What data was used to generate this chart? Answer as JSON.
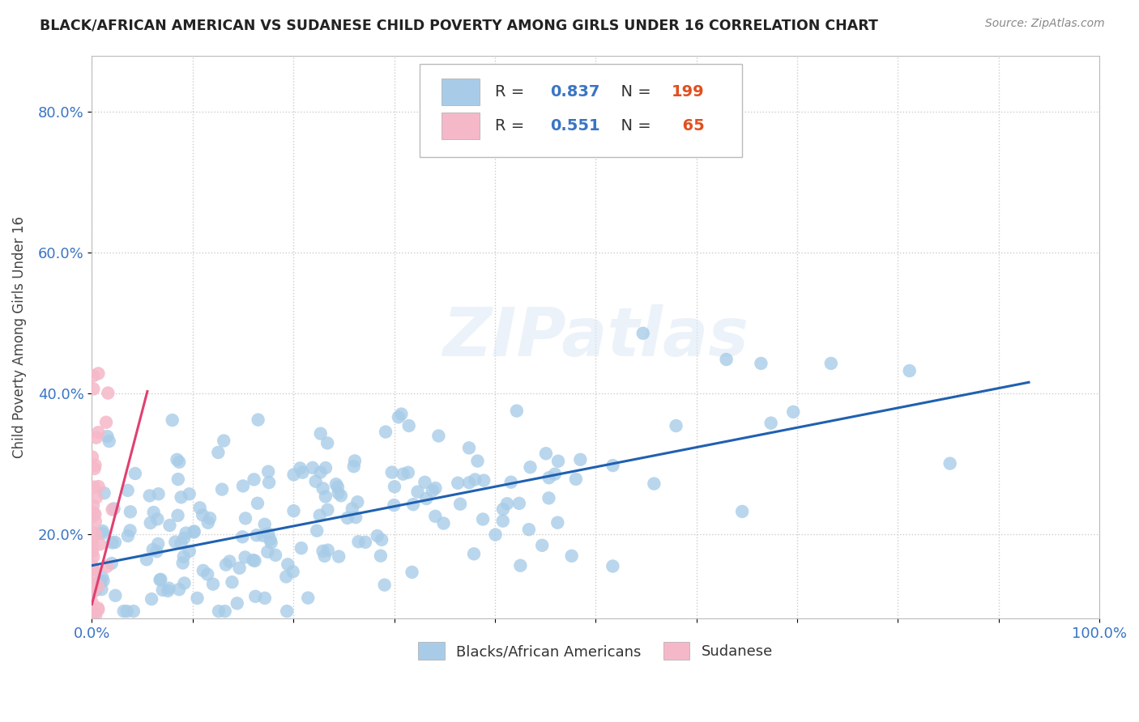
{
  "title": "BLACK/AFRICAN AMERICAN VS SUDANESE CHILD POVERTY AMONG GIRLS UNDER 16 CORRELATION CHART",
  "source": "Source: ZipAtlas.com",
  "ylabel": "Child Poverty Among Girls Under 16",
  "xlim": [
    0.0,
    1.0
  ],
  "ylim": [
    0.08,
    0.88
  ],
  "xticks": [
    0.0,
    0.1,
    0.2,
    0.3,
    0.4,
    0.5,
    0.6,
    0.7,
    0.8,
    0.9,
    1.0
  ],
  "xticklabels": [
    "0.0%",
    "",
    "",
    "",
    "",
    "",
    "",
    "",
    "",
    "",
    "100.0%"
  ],
  "yticks": [
    0.2,
    0.4,
    0.6,
    0.8
  ],
  "yticklabels": [
    "20.0%",
    "40.0%",
    "60.0%",
    "80.0%"
  ],
  "blue_color": "#a8cce8",
  "pink_color": "#f5b8c8",
  "blue_line_color": "#2060b0",
  "pink_line_color": "#e04070",
  "blue_R": 0.837,
  "blue_N": 199,
  "pink_R": 0.551,
  "pink_N": 65,
  "blue_intercept": 0.155,
  "blue_slope": 0.28,
  "pink_intercept": 0.1,
  "pink_slope": 5.5,
  "watermark": "ZIPatlas",
  "background_color": "#ffffff",
  "grid_color": "#cccccc",
  "seed": 42
}
